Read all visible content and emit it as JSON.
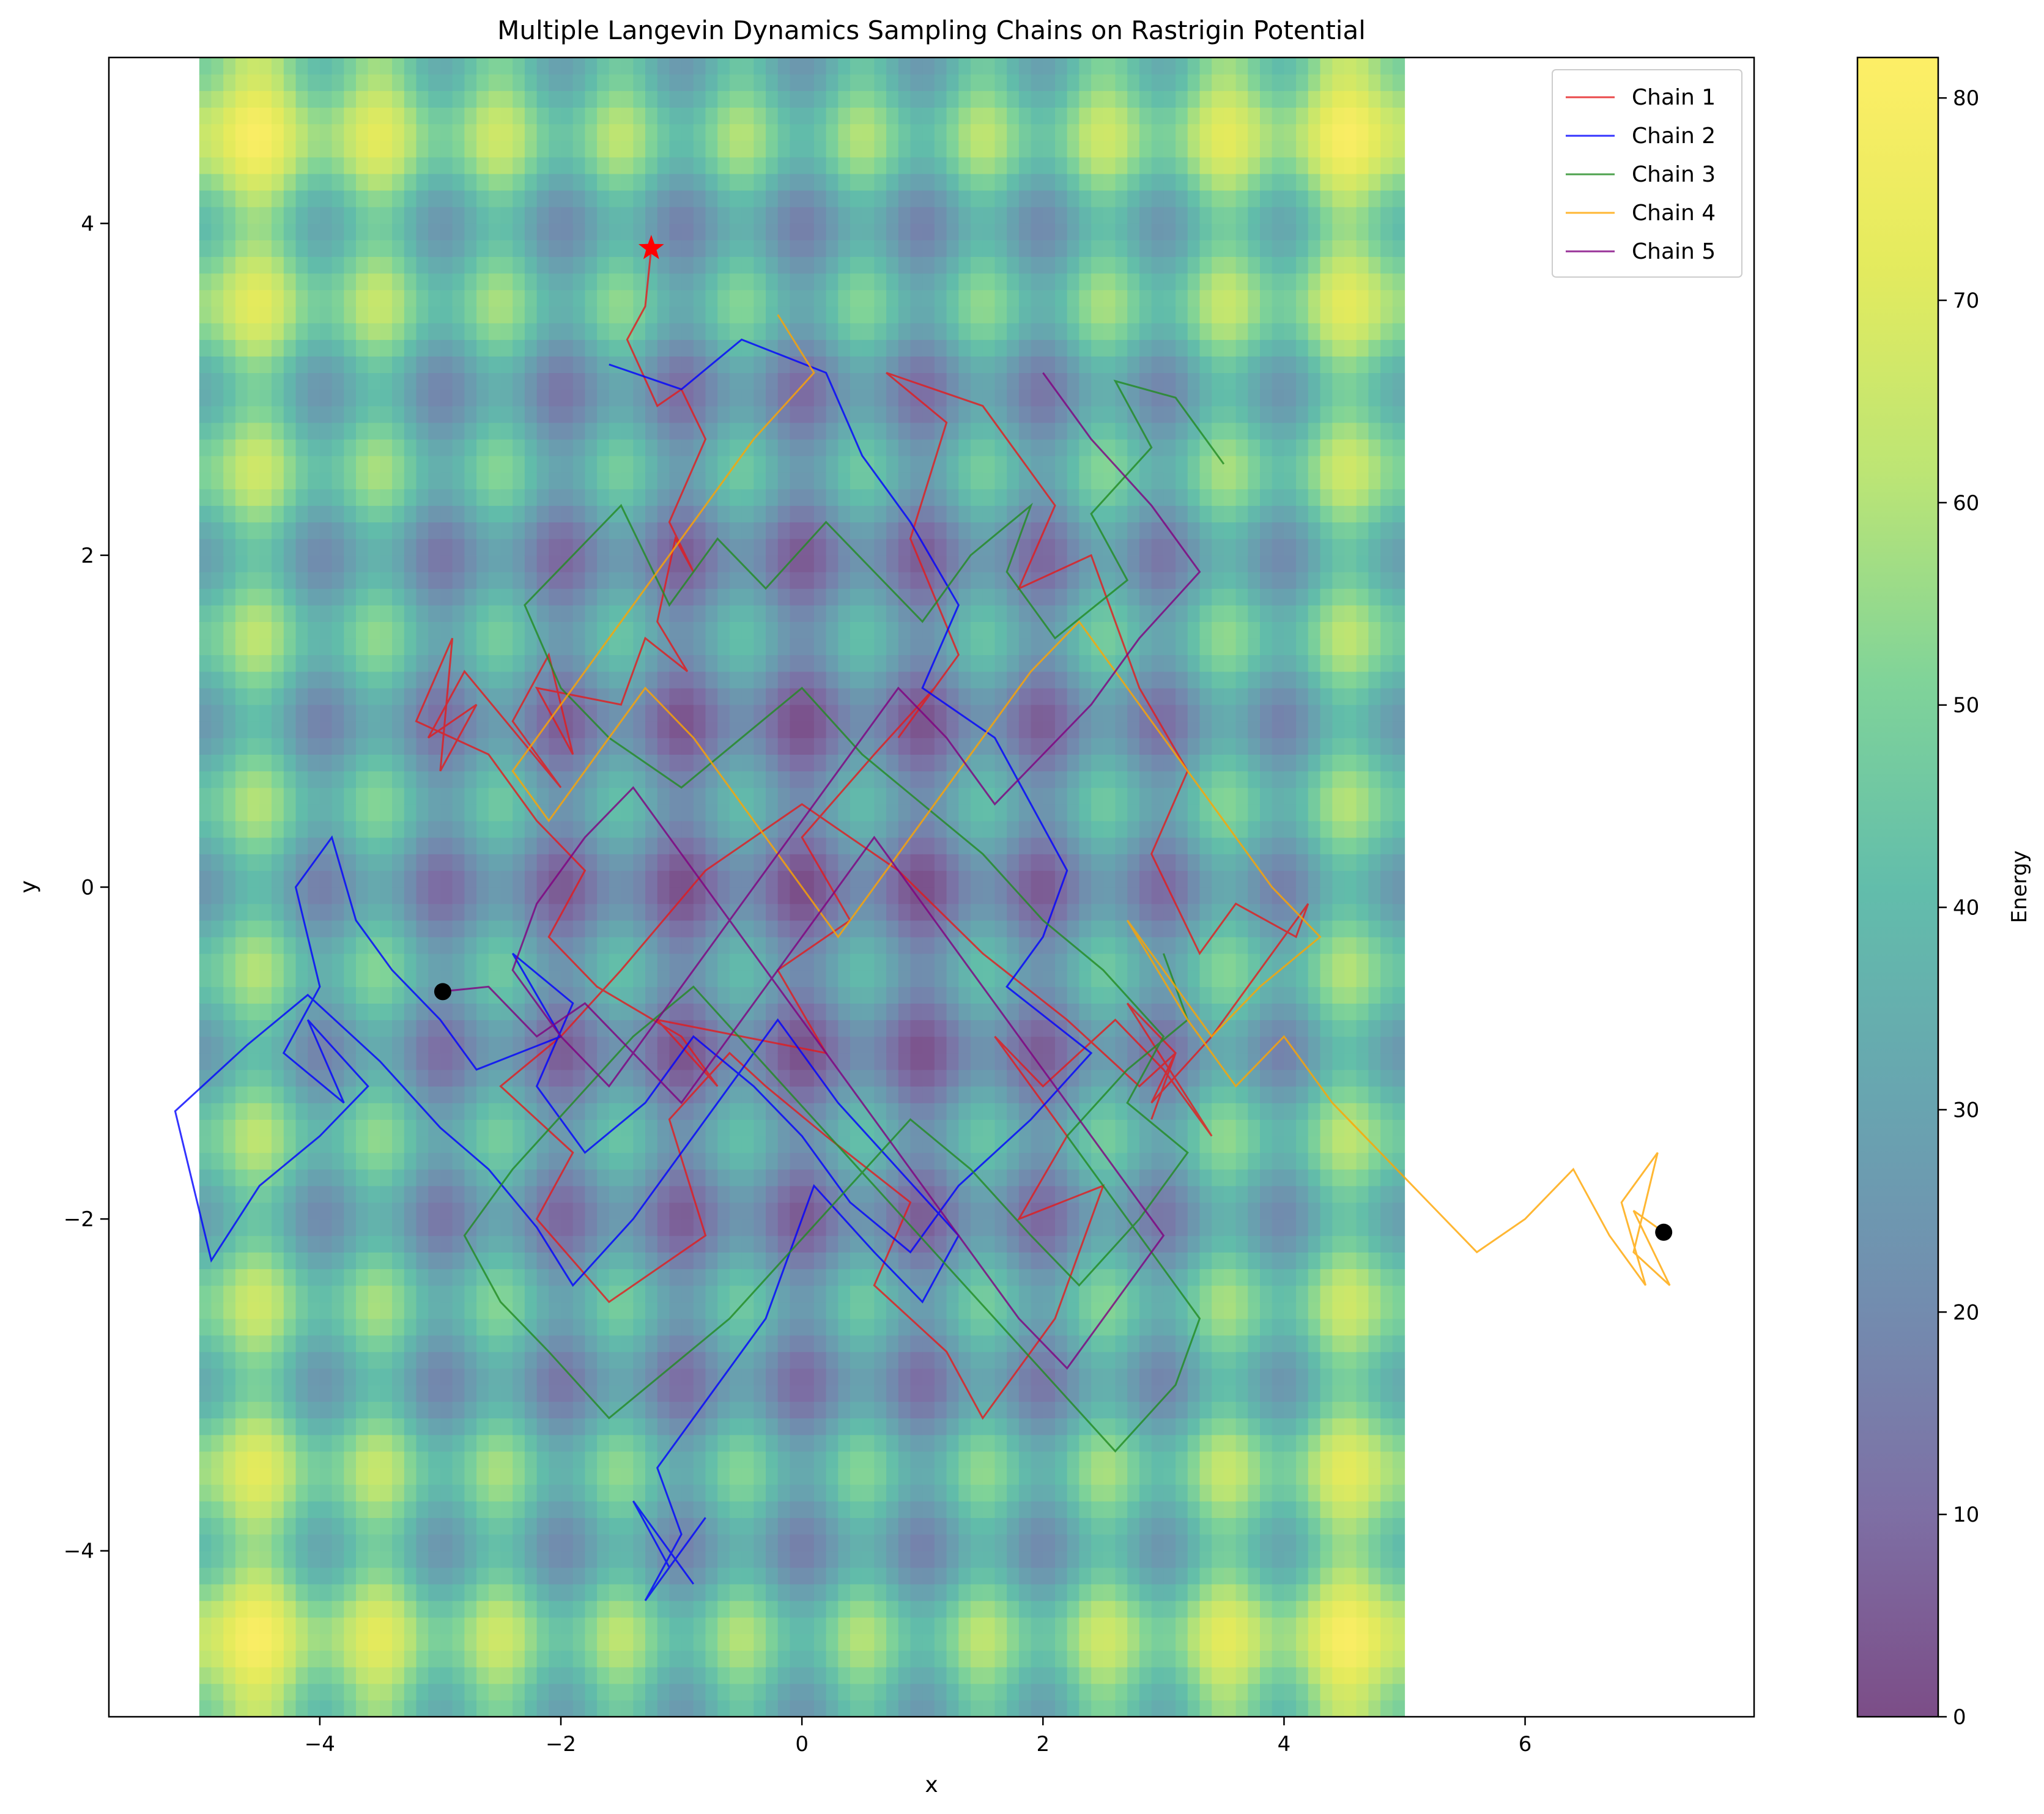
{
  "chart_data": {
    "type": "line",
    "title": "Multiple Langevin Dynamics Sampling Chains on Rastrigin Potential",
    "xlabel": "x",
    "ylabel": "y",
    "xlim": [
      -5.75,
      7.9
    ],
    "ylim": [
      -5,
      5
    ],
    "x_ticks": [
      -4,
      -2,
      0,
      2,
      4,
      6
    ],
    "y_ticks": [
      -4,
      -2,
      0,
      2,
      4
    ],
    "x_tick_labels": [
      "−4",
      "−2",
      "0",
      "2",
      "4",
      "6"
    ],
    "y_tick_labels": [
      "−4",
      "−2",
      "0",
      "2",
      "4"
    ],
    "background": {
      "type": "heatmap",
      "function": "Rastrigin",
      "x_range": [
        -5,
        5
      ],
      "y_range": [
        -5,
        5
      ],
      "colormap": "viridis",
      "alpha": 0.7
    },
    "colorbar": {
      "label": "Energy",
      "range": [
        0,
        82
      ],
      "ticks": [
        0,
        10,
        20,
        30,
        40,
        50,
        60,
        70,
        80
      ]
    },
    "legend_position": "top-right",
    "series": [
      {
        "name": "Chain 1",
        "color": "#e41a1c",
        "x": [
          -1.25,
          -1.3,
          -1.45,
          -1.2,
          -1.0,
          -0.8,
          -1.1,
          -0.9,
          -1.05,
          -1.2,
          -0.95,
          -1.3,
          -1.5,
          -2.2,
          -1.9,
          -2.1,
          -2.4,
          -2.0,
          -2.8,
          -3.1,
          -2.7,
          -3.0,
          -2.9,
          -3.2,
          -2.6,
          -2.2,
          -1.8,
          -2.1,
          -1.7,
          -1.0,
          -0.7,
          -1.2,
          0.2,
          -0.2,
          0.4,
          0.0,
          0.6,
          1.1,
          0.8,
          1.3,
          0.9,
          1.2,
          0.7,
          1.5,
          2.1,
          1.8,
          2.4,
          2.8,
          3.2,
          2.9,
          3.3,
          3.6,
          4.1,
          4.2,
          3.4,
          2.9,
          3.1,
          2.7,
          3.4,
          3.0,
          2.6,
          2.0,
          1.6,
          2.2,
          1.8,
          2.5,
          2.1,
          1.5,
          1.2,
          0.6,
          0.9,
          0.2,
          -0.3,
          -0.6,
          -1.1,
          -0.8,
          -1.6,
          -2.2,
          -1.9,
          -2.5,
          -2.0,
          -1.5,
          -0.8,
          0.0,
          0.8,
          1.5,
          2.2,
          2.8,
          3.1,
          2.9
        ],
        "y": [
          3.85,
          3.5,
          3.3,
          2.9,
          3.0,
          2.7,
          2.2,
          1.9,
          2.1,
          1.6,
          1.3,
          1.5,
          1.1,
          1.2,
          0.8,
          1.4,
          1.0,
          0.6,
          1.3,
          0.9,
          1.1,
          0.7,
          1.5,
          1.0,
          0.8,
          0.4,
          0.1,
          -0.3,
          -0.6,
          -0.9,
          -1.2,
          -0.8,
          -1.0,
          -0.5,
          -0.2,
          0.3,
          0.8,
          1.2,
          0.9,
          1.4,
          2.1,
          2.8,
          3.1,
          2.9,
          2.3,
          1.8,
          2.0,
          1.2,
          0.7,
          0.2,
          -0.4,
          -0.1,
          -0.3,
          -0.1,
          -0.9,
          -1.3,
          -1.0,
          -0.7,
          -1.5,
          -1.1,
          -0.8,
          -1.2,
          -0.9,
          -1.5,
          -2.0,
          -1.8,
          -2.6,
          -3.2,
          -2.8,
          -2.4,
          -1.9,
          -1.5,
          -1.2,
          -1.0,
          -1.4,
          -2.1,
          -2.5,
          -2.0,
          -1.6,
          -1.2,
          -0.9,
          -0.5,
          0.1,
          0.5,
          0.1,
          -0.4,
          -0.8,
          -1.2,
          -1.0,
          -1.4
        ]
      },
      {
        "name": "Chain 2",
        "color": "#0000ff",
        "x": [
          -1.6,
          -1.0,
          -0.5,
          0.2,
          0.5,
          0.9,
          1.3,
          1.0,
          1.6,
          1.9,
          2.2,
          2.0,
          1.7,
          2.4,
          1.9,
          1.3,
          0.9,
          0.4,
          0.0,
          -0.4,
          -0.9,
          -1.3,
          -1.8,
          -2.2,
          -1.9,
          -2.4,
          -2.0,
          -2.7,
          -3.0,
          -3.4,
          -3.7,
          -3.9,
          -4.2,
          -4.0,
          -4.3,
          -3.8,
          -4.1,
          -3.6,
          -4.0,
          -4.5,
          -4.9,
          -5.2,
          -4.6,
          -4.1,
          -3.5,
          -3.0,
          -2.6,
          -2.2,
          -1.9,
          -1.4,
          -1.0,
          -0.6,
          -0.2,
          0.3,
          0.8,
          1.3,
          1.0,
          0.6,
          0.1,
          -0.3,
          -0.8,
          -1.2,
          -1.0,
          -1.3,
          -0.8,
          -1.1,
          -1.4,
          -0.9
        ],
        "y": [
          3.15,
          3.0,
          3.3,
          3.1,
          2.6,
          2.2,
          1.7,
          1.2,
          0.9,
          0.5,
          0.1,
          -0.3,
          -0.6,
          -1.0,
          -1.4,
          -1.8,
          -2.2,
          -1.9,
          -1.5,
          -1.2,
          -0.9,
          -1.3,
          -1.6,
          -1.2,
          -0.7,
          -0.4,
          -0.9,
          -1.1,
          -0.8,
          -0.5,
          -0.2,
          0.3,
          0.0,
          -0.6,
          -1.0,
          -1.3,
          -0.8,
          -1.2,
          -1.5,
          -1.8,
          -2.25,
          -1.35,
          -0.95,
          -0.65,
          -1.05,
          -1.45,
          -1.7,
          -2.05,
          -2.4,
          -2.0,
          -1.6,
          -1.2,
          -0.8,
          -1.3,
          -1.7,
          -2.1,
          -2.5,
          -2.2,
          -1.8,
          -2.6,
          -3.1,
          -3.5,
          -3.9,
          -4.3,
          -3.8,
          -4.1,
          -3.7,
          -4.2
        ]
      },
      {
        "name": "Chain 3",
        "color": "#228b22",
        "x": [
          3.5,
          3.1,
          2.6,
          2.9,
          2.4,
          2.7,
          2.1,
          1.7,
          1.9,
          1.4,
          1.0,
          0.6,
          0.2,
          -0.3,
          -0.7,
          -1.1,
          -1.5,
          -1.9,
          -2.3,
          -2.0,
          -1.6,
          -1.0,
          -0.5,
          0.0,
          0.5,
          1.0,
          1.5,
          2.0,
          2.5,
          3.0,
          2.7,
          3.2,
          2.8,
          2.3,
          1.9,
          1.4,
          0.9,
          0.4,
          -0.1,
          -0.6,
          -1.1,
          -1.6,
          -2.1,
          -2.5,
          -2.8,
          -2.4,
          -1.9,
          -1.4,
          -0.9,
          -0.4,
          0.1,
          0.6,
          1.1,
          1.6,
          2.1,
          2.6,
          3.1,
          3.3,
          2.9,
          2.5,
          2.2,
          2.7,
          3.2,
          3.0
        ],
        "y": [
          2.55,
          2.95,
          3.05,
          2.65,
          2.25,
          1.85,
          1.5,
          1.9,
          2.3,
          2.0,
          1.6,
          1.9,
          2.2,
          1.8,
          2.1,
          1.7,
          2.3,
          2.0,
          1.7,
          1.2,
          0.9,
          0.6,
          0.9,
          1.2,
          0.8,
          0.5,
          0.2,
          -0.2,
          -0.5,
          -0.9,
          -1.3,
          -1.6,
          -2.0,
          -2.4,
          -2.1,
          -1.7,
          -1.4,
          -1.8,
          -2.2,
          -2.6,
          -2.9,
          -3.2,
          -2.8,
          -2.5,
          -2.1,
          -1.7,
          -1.3,
          -0.9,
          -0.6,
          -1.0,
          -1.4,
          -1.8,
          -2.2,
          -2.6,
          -3.0,
          -3.4,
          -3.0,
          -2.6,
          -2.2,
          -1.8,
          -1.5,
          -1.1,
          -0.8,
          -0.4
        ]
      },
      {
        "name": "Chain 4",
        "color": "#ffa500",
        "x": [
          -0.2,
          0.1,
          -0.4,
          -0.8,
          -1.2,
          -1.6,
          -2.0,
          -2.4,
          -2.1,
          -1.7,
          -1.3,
          -0.9,
          -0.5,
          -0.1,
          0.3,
          0.7,
          1.1,
          1.5,
          1.9,
          2.3,
          2.7,
          3.1,
          3.5,
          3.9,
          4.3,
          3.8,
          3.4,
          3.0,
          2.7,
          3.2,
          3.6,
          4.0,
          4.4,
          4.8,
          5.2,
          5.6,
          6.0,
          6.4,
          6.7,
          7.0,
          6.8,
          7.1,
          6.9,
          7.2,
          6.9,
          7.15
        ],
        "y": [
          3.45,
          3.1,
          2.7,
          2.3,
          1.9,
          1.5,
          1.1,
          0.7,
          0.4,
          0.8,
          1.2,
          0.9,
          0.5,
          0.1,
          -0.3,
          0.1,
          0.5,
          0.9,
          1.3,
          1.6,
          1.2,
          0.8,
          0.4,
          0.0,
          -0.3,
          -0.6,
          -0.9,
          -0.5,
          -0.2,
          -0.8,
          -1.2,
          -0.9,
          -1.3,
          -1.6,
          -1.9,
          -2.2,
          -2.0,
          -1.7,
          -2.1,
          -2.4,
          -1.9,
          -1.6,
          -2.2,
          -2.4,
          -1.95,
          -2.08
        ]
      },
      {
        "name": "Chain 5",
        "color": "#800080",
        "x": [
          2.0,
          2.4,
          2.9,
          3.3,
          2.8,
          2.4,
          2.0,
          1.6,
          1.2,
          0.8,
          0.4,
          0.0,
          -0.4,
          -0.8,
          -1.2,
          -1.6,
          -2.0,
          -2.4,
          -2.2,
          -1.8,
          -1.4,
          -1.0,
          -0.6,
          -0.2,
          0.2,
          0.6,
          1.0,
          1.4,
          1.8,
          2.2,
          2.6,
          3.0,
          2.6,
          2.2,
          1.8,
          1.4,
          1.0,
          0.6,
          0.2,
          -0.2,
          -0.6,
          -1.0,
          -1.4,
          -1.8,
          -2.2,
          -2.6,
          -3.0
        ],
        "y": [
          3.1,
          2.7,
          2.3,
          1.9,
          1.5,
          1.1,
          0.8,
          0.5,
          0.9,
          1.2,
          0.8,
          0.4,
          0.0,
          -0.4,
          -0.8,
          -1.2,
          -0.9,
          -0.5,
          -0.1,
          0.3,
          0.6,
          0.2,
          -0.2,
          -0.6,
          -1.0,
          -1.4,
          -1.8,
          -2.2,
          -2.6,
          -2.9,
          -2.5,
          -2.1,
          -1.7,
          -1.3,
          -0.9,
          -0.5,
          -0.1,
          0.3,
          -0.1,
          -0.5,
          -0.9,
          -1.3,
          -1.0,
          -0.7,
          -0.9,
          -0.6,
          -0.63
        ]
      }
    ],
    "markers": [
      {
        "shape": "star",
        "color": "#ff0000",
        "x": -1.25,
        "y": 3.85
      },
      {
        "shape": "circle",
        "color": "#000000",
        "x": -2.98,
        "y": -0.63
      },
      {
        "shape": "circle",
        "color": "#000000",
        "x": 7.15,
        "y": -2.08
      }
    ]
  }
}
